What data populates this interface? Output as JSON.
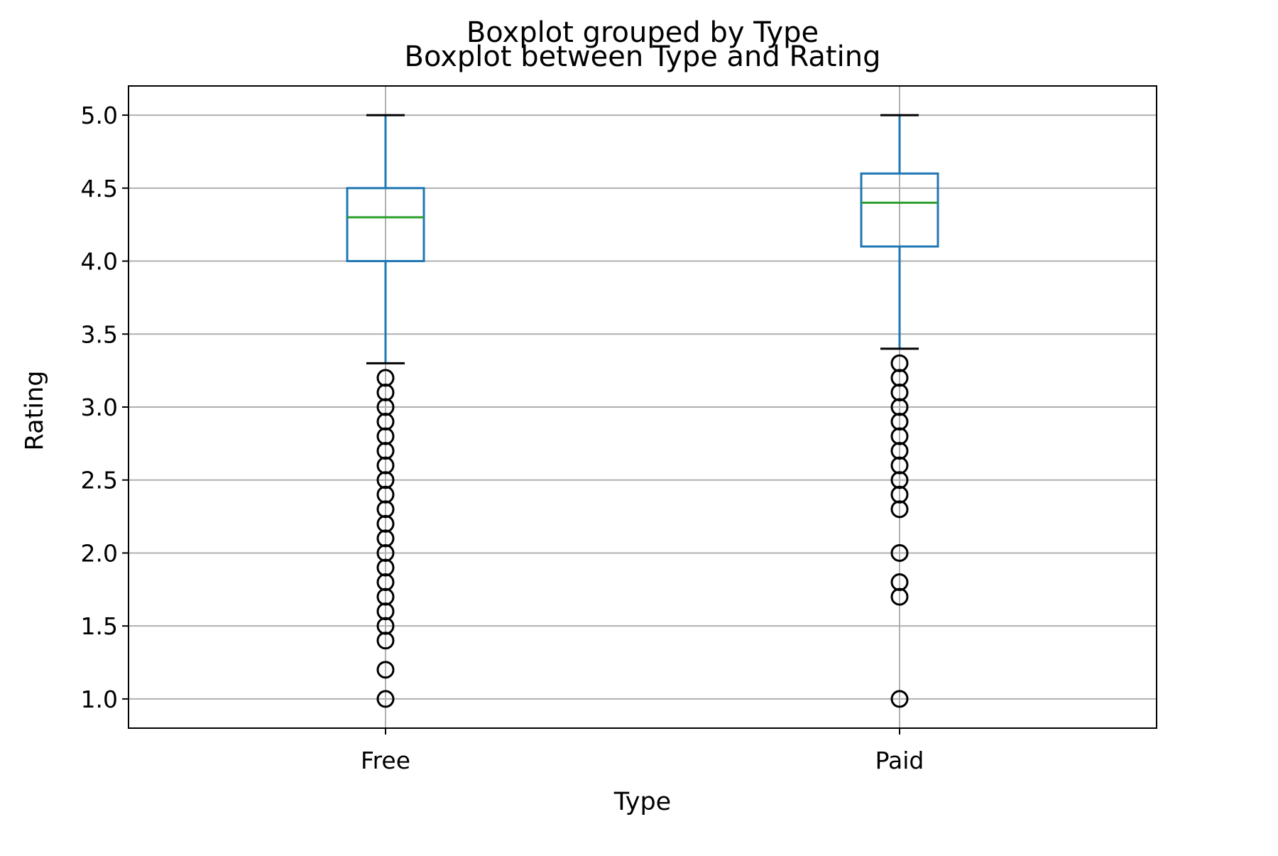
{
  "chart_data": {
    "type": "boxplot",
    "suptitle": "Boxplot grouped by Type",
    "title": "Boxplot between Type and Rating",
    "xlabel": "Type",
    "ylabel": "Rating",
    "ylim": [
      0.8,
      5.2
    ],
    "yticks": [
      "1.0",
      "1.5",
      "2.0",
      "2.5",
      "3.0",
      "3.5",
      "4.0",
      "4.5",
      "5.0"
    ],
    "grid": true,
    "colors": {
      "box": "#1f77b4",
      "median": "#2ca02c",
      "whisker_cap": "#000000",
      "flier": "#000000",
      "grid": "#b0b0b0"
    },
    "categories": [
      "Free",
      "Paid"
    ],
    "boxes": [
      {
        "category": "Free",
        "whisker_low": 3.3,
        "q1": 4.0,
        "median": 4.3,
        "q3": 4.5,
        "whisker_high": 5.0,
        "fliers": [
          1.0,
          1.2,
          1.4,
          1.5,
          1.6,
          1.7,
          1.8,
          1.9,
          2.0,
          2.1,
          2.2,
          2.3,
          2.4,
          2.5,
          2.6,
          2.7,
          2.8,
          2.9,
          3.0,
          3.1,
          3.2
        ]
      },
      {
        "category": "Paid",
        "whisker_low": 3.4,
        "q1": 4.1,
        "median": 4.4,
        "q3": 4.6,
        "whisker_high": 5.0,
        "fliers": [
          1.0,
          1.7,
          1.8,
          2.0,
          2.3,
          2.4,
          2.5,
          2.6,
          2.7,
          2.8,
          2.9,
          3.0,
          3.1,
          3.2,
          3.3
        ]
      }
    ]
  }
}
